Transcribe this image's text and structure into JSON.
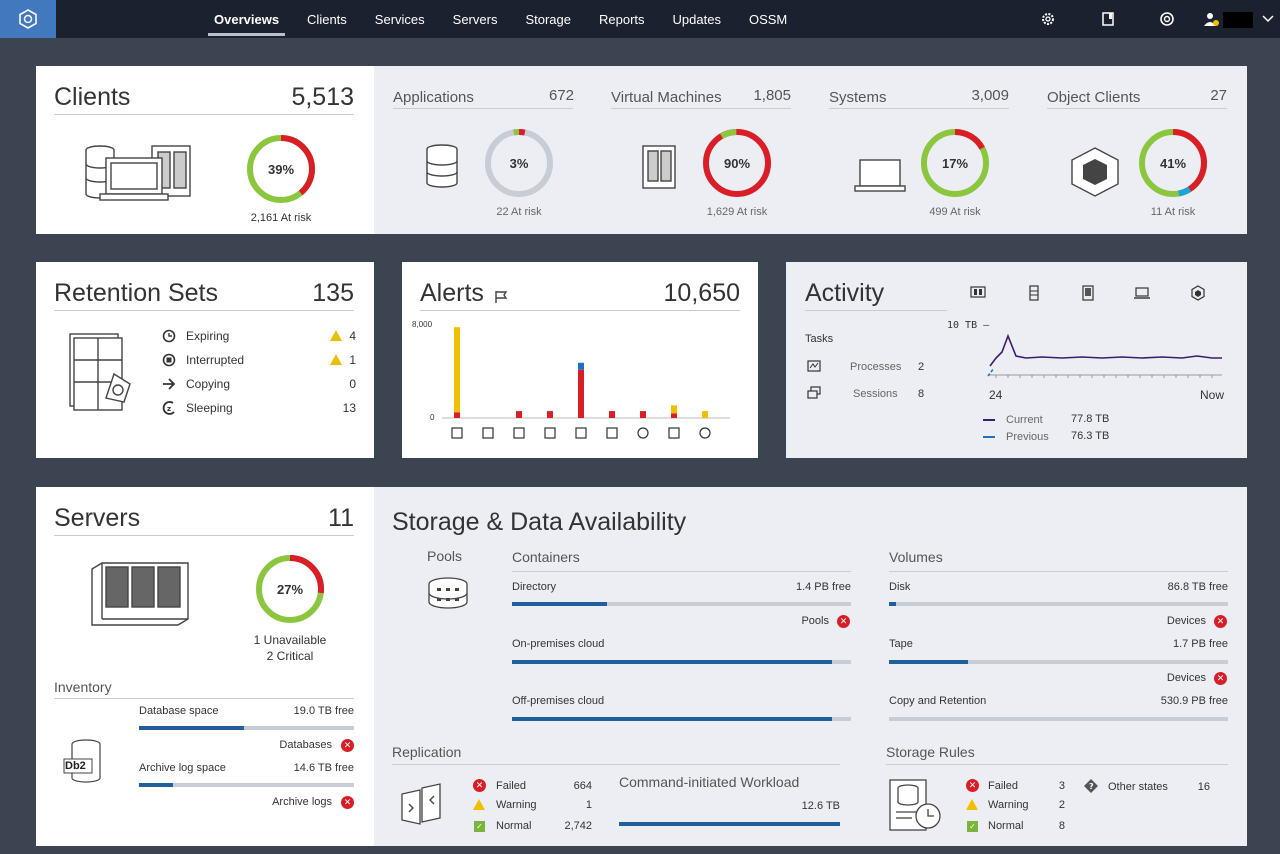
{
  "nav": {
    "items": [
      "Overviews",
      "Clients",
      "Services",
      "Servers",
      "Storage",
      "Reports",
      "Updates",
      "OSSM"
    ],
    "active": "Overviews"
  },
  "clients": {
    "title": "Clients",
    "count": "5,513",
    "pct": "39%",
    "at_risk": "2,161 At risk",
    "pct_value": 39
  },
  "applications": {
    "title": "Applications",
    "count": "672",
    "pct": "3%",
    "at_risk": "22 At risk",
    "pct_value": 3
  },
  "vms": {
    "title": "Virtual Machines",
    "count": "1,805",
    "pct": "90%",
    "at_risk": "1,629 At risk",
    "pct_value": 90
  },
  "systems": {
    "title": "Systems",
    "count": "3,009",
    "pct": "17%",
    "at_risk": "499 At risk",
    "pct_value": 17
  },
  "objects": {
    "title": "Object Clients",
    "count": "27",
    "pct": "41%",
    "at_risk": "11 At risk",
    "pct_value": 41
  },
  "retention": {
    "title": "Retention Sets",
    "count": "135",
    "items": [
      {
        "label": "Expiring",
        "value": "4",
        "warn": true
      },
      {
        "label": "Interrupted",
        "value": "1",
        "warn": true
      },
      {
        "label": "Copying",
        "value": "0",
        "warn": false
      },
      {
        "label": "Sleeping",
        "value": "13",
        "warn": false
      }
    ]
  },
  "alerts": {
    "title": "Alerts",
    "count": "10,650",
    "y_top": "8,000",
    "y_zero": "0"
  },
  "chart_data": {
    "type": "bar",
    "ylim": [
      0,
      8000
    ],
    "yticks": [
      "8,000",
      "0"
    ],
    "categories": [
      "vm-bars",
      "db",
      "server",
      "laptop",
      "system",
      "storage",
      "pool",
      "camera",
      "object"
    ],
    "series": [
      {
        "color": "#da1e28",
        "values": [
          500,
          0,
          600,
          600,
          4200,
          600,
          600,
          400,
          0
        ]
      },
      {
        "color": "#f0c000",
        "values": [
          7400,
          0,
          0,
          0,
          0,
          0,
          0,
          700,
          600
        ]
      },
      {
        "color": "#1f70c1",
        "values": [
          0,
          0,
          0,
          0,
          600,
          0,
          0,
          0,
          0
        ]
      }
    ]
  },
  "activity": {
    "title": "Activity",
    "tasks": "Tasks",
    "processes_label": "Processes",
    "processes": "2",
    "sessions_label": "Sessions",
    "sessions": "8",
    "y_label": "10 TB —",
    "x_start": "24",
    "x_end": "Now",
    "current_label": "Current",
    "current": "77.8 TB",
    "previous_label": "Previous",
    "previous": "76.3 TB"
  },
  "servers": {
    "title": "Servers",
    "count": "11",
    "pct": "27%",
    "pct_value": 27,
    "unavailable": "1 Unavailable",
    "critical": "2 Critical",
    "inventory": "Inventory",
    "db_space": "Database space",
    "db_free": "19.0 TB free",
    "databases": "Databases",
    "archive_space": "Archive log space",
    "archive_free": "14.6 TB free",
    "archive_logs": "Archive logs",
    "db2": "Db2"
  },
  "storage": {
    "title": "Storage & Data Availability",
    "pools": "Pools",
    "containers": "Containers",
    "directory": "Directory",
    "directory_free": "1.4 PB free",
    "pools_label": "Pools",
    "onprem": "On-premises cloud",
    "offprem": "Off-premises cloud",
    "volumes": "Volumes",
    "disk": "Disk",
    "disk_free": "86.8 TB free",
    "devices": "Devices",
    "tape": "Tape",
    "tape_free": "1.7 PB free",
    "copy": "Copy and Retention",
    "copy_free": "530.9 PB free",
    "directory_fill": 0.28,
    "disk_fill": 0.02,
    "tape_fill": 0.23
  },
  "replication": {
    "title": "Replication",
    "failed_label": "Failed",
    "failed": "664",
    "warning_label": "Warning",
    "warning": "1",
    "normal_label": "Normal",
    "normal": "2,742",
    "workload": "Command-initiated Workload",
    "workload_value": "12.6 TB"
  },
  "rules": {
    "title": "Storage Rules",
    "failed_label": "Failed",
    "failed": "3",
    "warning_label": "Warning",
    "warning": "2",
    "normal_label": "Normal",
    "normal": "8",
    "other_label": "Other states",
    "other": "16"
  }
}
